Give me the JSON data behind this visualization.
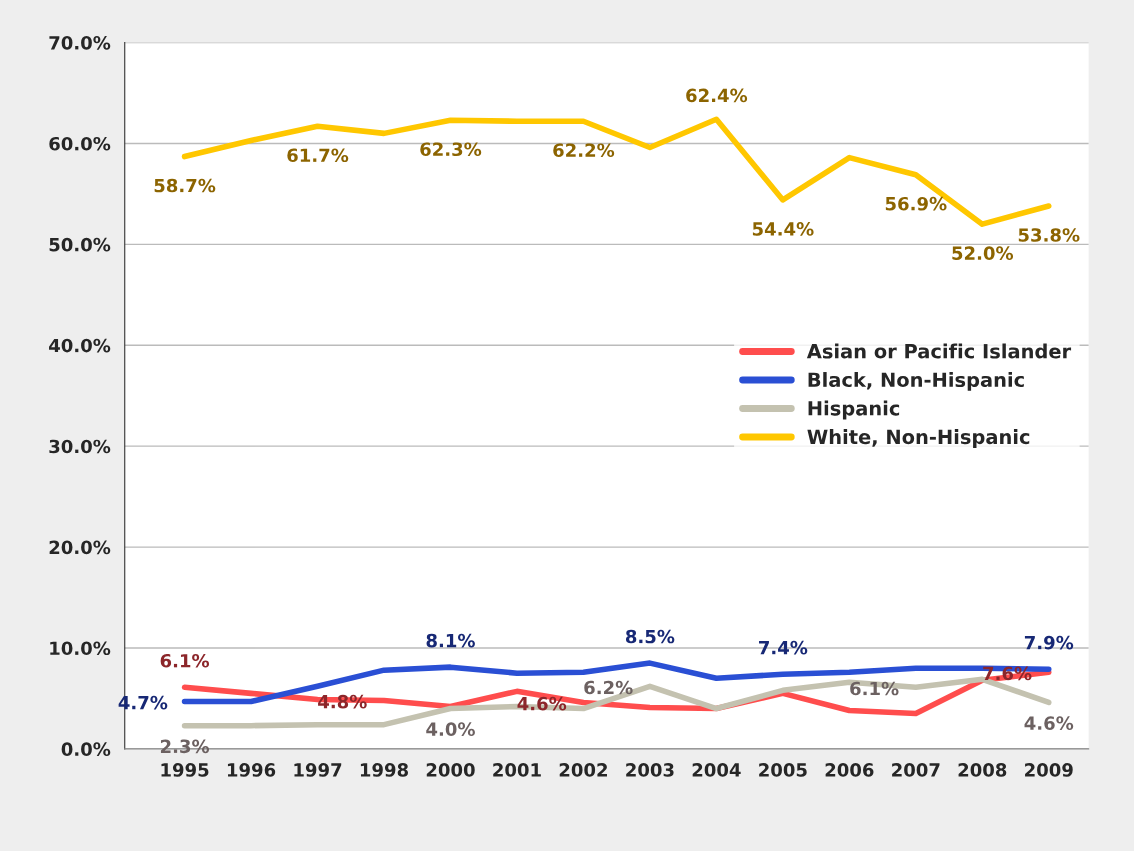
{
  "chart_data": {
    "type": "line",
    "categories": [
      "1995",
      "1996",
      "1997",
      "1998",
      "2000",
      "2001",
      "2002",
      "2003",
      "2004",
      "2005",
      "2006",
      "2007",
      "2008",
      "2009"
    ],
    "series": [
      {
        "name": "Asian or Pacific Islander",
        "color": "#ff4d4d",
        "values": [
          6.1,
          5.5,
          4.9,
          4.8,
          4.2,
          5.7,
          4.6,
          4.1,
          4.0,
          5.5,
          3.8,
          3.5,
          6.8,
          7.6
        ],
        "value_labels": [
          "6.1%",
          null,
          null,
          "4.8%",
          null,
          null,
          "4.6%",
          null,
          null,
          null,
          null,
          null,
          null,
          "7.6%"
        ]
      },
      {
        "name": "Black, Non-Hispanic",
        "color": "#2a4fd4",
        "values": [
          4.7,
          4.7,
          6.2,
          7.8,
          8.1,
          7.5,
          7.6,
          8.5,
          7.0,
          7.4,
          7.6,
          8.0,
          8.0,
          7.9
        ],
        "value_labels": [
          "4.7%",
          null,
          null,
          null,
          "8.1%",
          null,
          null,
          "8.5%",
          null,
          "7.4%",
          null,
          null,
          null,
          "7.9%"
        ]
      },
      {
        "name": "Hispanic",
        "color": "#c4c2b0",
        "values": [
          2.3,
          2.3,
          2.4,
          2.4,
          4.0,
          4.2,
          4.0,
          6.2,
          4.0,
          5.8,
          6.6,
          6.1,
          6.9,
          4.6
        ],
        "value_labels": [
          "2.3%",
          null,
          null,
          null,
          "4.0%",
          null,
          null,
          "6.2%",
          null,
          null,
          null,
          "6.1%",
          null,
          "4.6%"
        ]
      },
      {
        "name": "White, Non-Hispanic",
        "color": "#ffc700",
        "values": [
          58.7,
          60.3,
          61.7,
          61.0,
          62.3,
          62.2,
          62.2,
          59.6,
          62.4,
          54.4,
          58.6,
          56.9,
          52.0,
          53.8
        ],
        "value_labels": [
          "58.7%",
          null,
          "61.7%",
          null,
          "62.3%",
          null,
          "62.2%",
          null,
          "62.4%",
          "54.4%",
          null,
          "56.9%",
          "52.0%",
          "53.8%"
        ]
      }
    ],
    "ylim": [
      0,
      70
    ],
    "yticks": [
      {
        "value": 0,
        "label": "0.0%"
      },
      {
        "value": 10,
        "label": "10.0%"
      },
      {
        "value": 20,
        "label": "20.0%"
      },
      {
        "value": 30,
        "label": "30.0%"
      },
      {
        "value": 40,
        "label": "40.0%"
      },
      {
        "value": 50,
        "label": "50.0%"
      },
      {
        "value": 60,
        "label": "60.0%"
      },
      {
        "value": 70,
        "label": "70.0%"
      }
    ],
    "grid": "y",
    "legend": "center right",
    "marker": "none",
    "line_style": "solid"
  }
}
